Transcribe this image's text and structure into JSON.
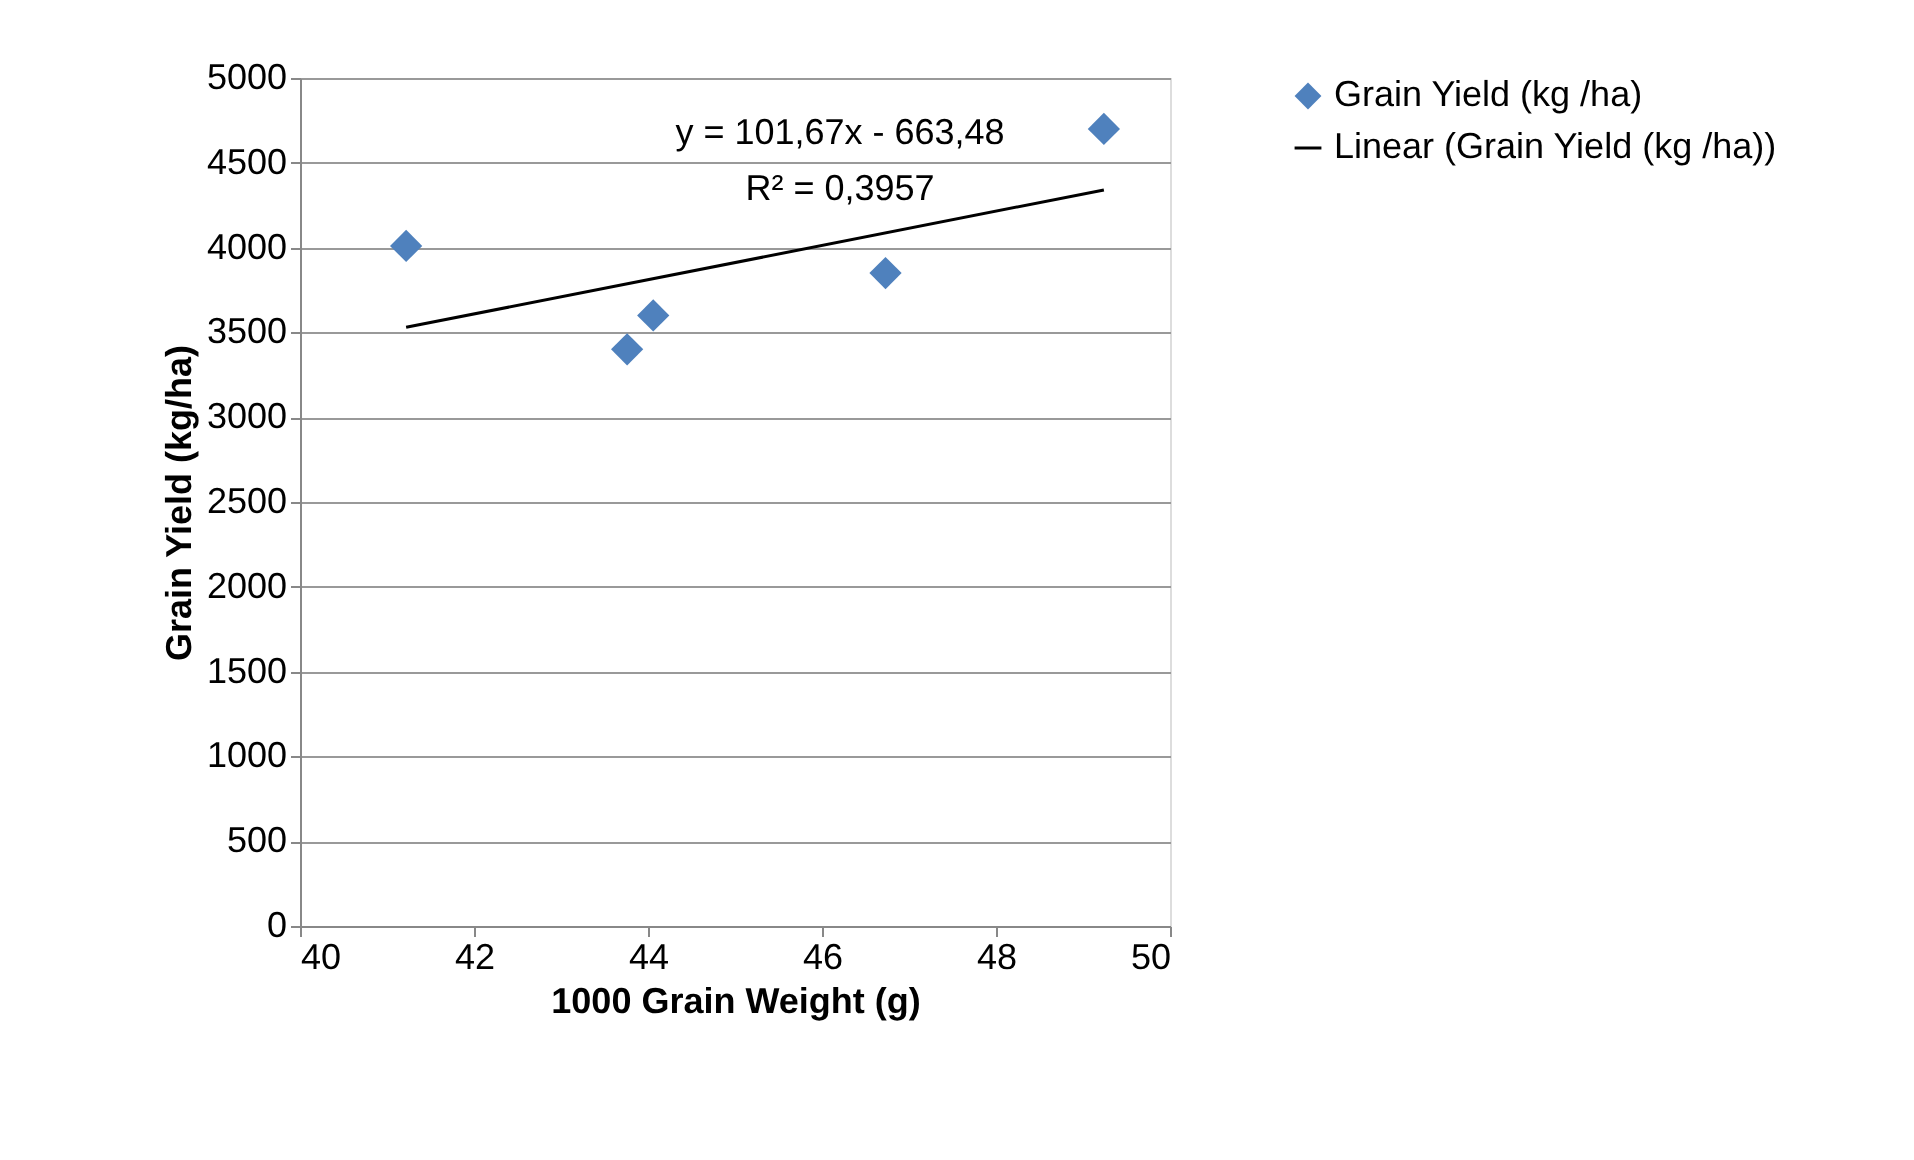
{
  "chart_data": {
    "type": "scatter",
    "xlabel": "1000 Grain Weight (g)",
    "ylabel": "Grain Yield (kg/ha)",
    "x": [
      41.22,
      43.76,
      44.06,
      46.73,
      49.24
    ],
    "series": [
      {
        "name": "Grain Yield (kg /ha)",
        "color": "#4f81bd",
        "values": [
          4010,
          3400,
          3600,
          3850,
          4700
        ],
        "marker": "diamond"
      },
      {
        "name": "Linear (Grain Yield (kg /ha))",
        "type": "line",
        "color": "#000000",
        "x": [
          41.22,
          49.24
        ],
        "values": [
          3530,
          4340
        ],
        "marker": "none",
        "line_style": "solid"
      }
    ],
    "xlim": [
      40,
      50
    ],
    "xticks": [
      40,
      42,
      44,
      46,
      48,
      50
    ],
    "ylim": [
      0,
      5000
    ],
    "yticks": [
      0,
      500,
      1000,
      1500,
      2000,
      2500,
      3000,
      3500,
      4000,
      4500,
      5000
    ],
    "grid": "y",
    "legend": "right",
    "annotations": [
      "y = 101,67x - 663,48",
      "R² = 0,3957"
    ]
  }
}
